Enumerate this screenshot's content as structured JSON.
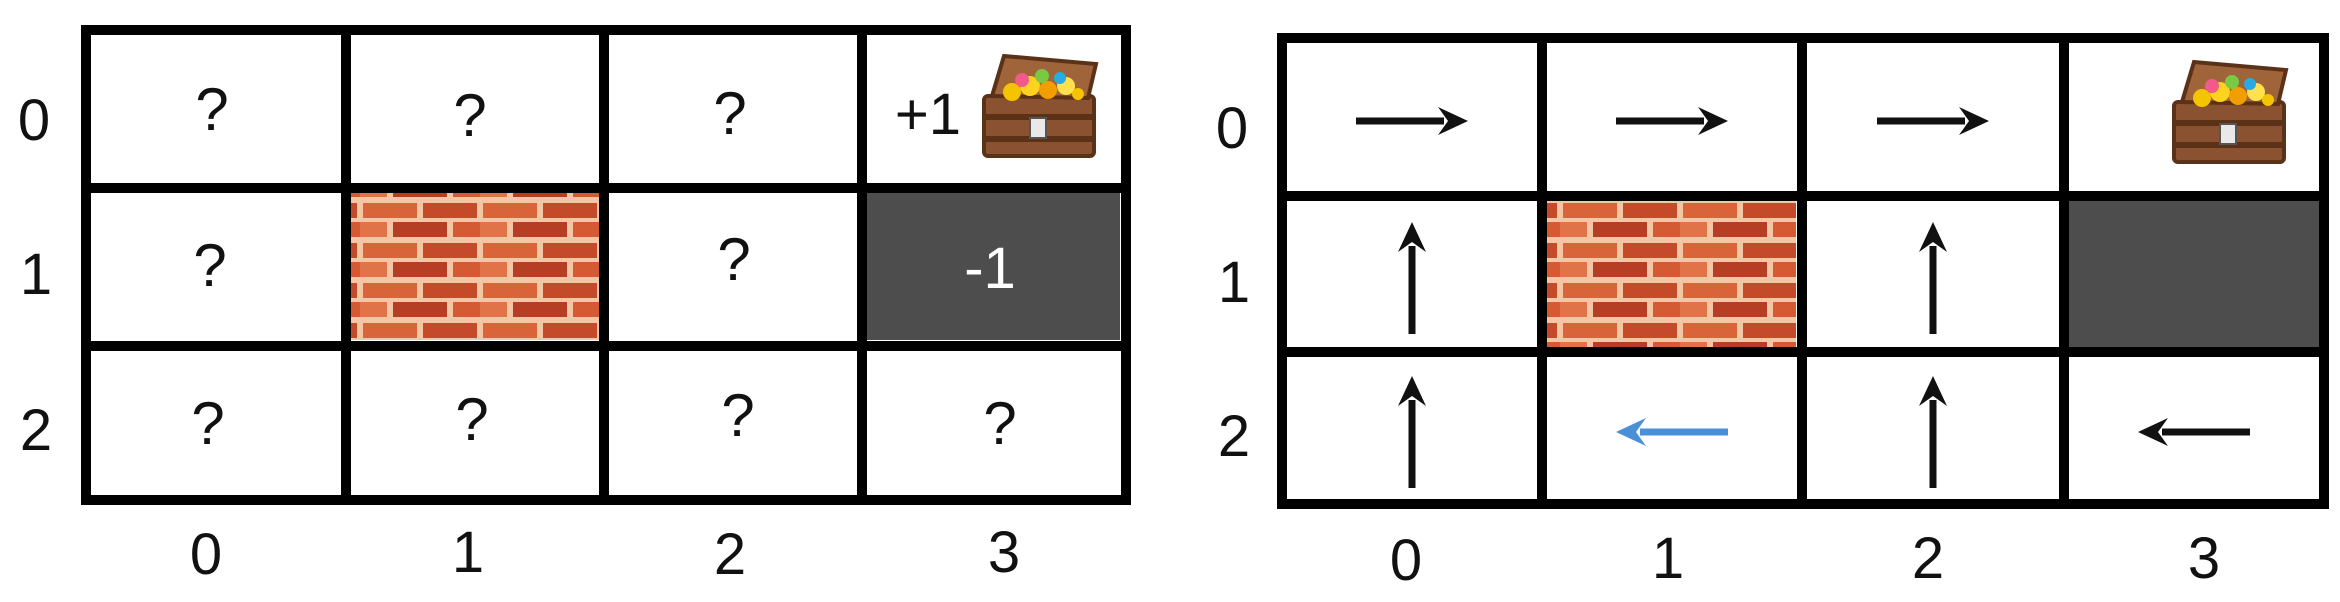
{
  "left_grid": {
    "row_labels": [
      "0",
      "1",
      "2"
    ],
    "col_labels": [
      "0",
      "1",
      "2",
      "3"
    ],
    "cell_symbol": "?",
    "goal_reward": "+1",
    "trap_reward": "-1"
  },
  "right_grid": {
    "row_labels": [
      "0",
      "1",
      "2"
    ],
    "col_labels": [
      "0",
      "1",
      "2",
      "3"
    ],
    "policy": [
      [
        "right",
        "right",
        "right",
        "goal"
      ],
      [
        "up",
        "wall",
        "up",
        "trap"
      ],
      [
        "up",
        "left",
        "up",
        "left"
      ]
    ],
    "highlighted_cell": "2,1"
  },
  "colors": {
    "grid_line": "#000000",
    "trap_fill": "#4d4d4d",
    "arrow": "#111111",
    "highlight_arrow": "#4a90d9",
    "trap_text": "#ffffff"
  },
  "icons": {
    "goal": "treasure-chest-icon",
    "wall": "brick-wall-icon"
  }
}
